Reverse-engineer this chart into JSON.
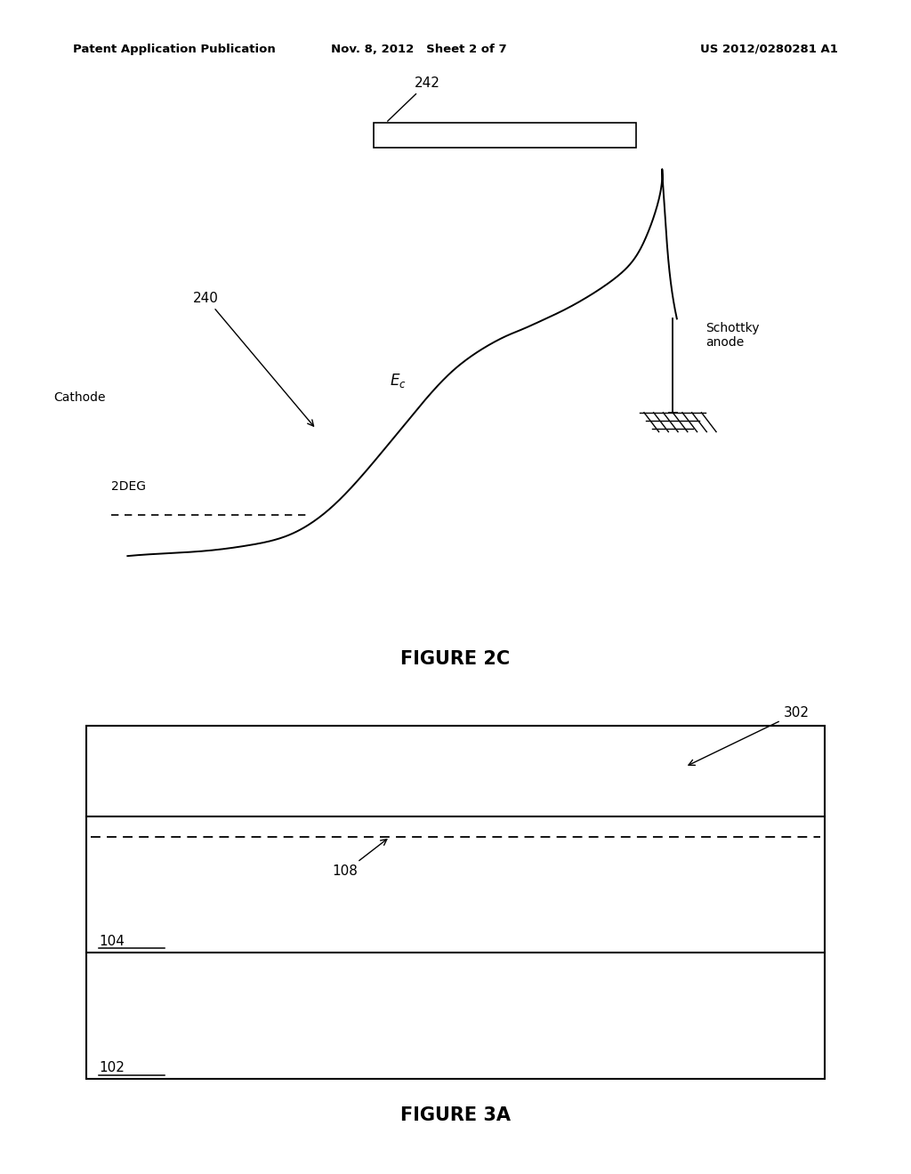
{
  "bg_color": "#ffffff",
  "header_left": "Patent Application Publication",
  "header_mid": "Nov. 8, 2012   Sheet 2 of 7",
  "header_right": "US 2012/0280281 A1",
  "fig2c_title": "FIGURE 2C",
  "fig3a_title": "FIGURE 3A",
  "label_242": "242",
  "label_240": "240",
  "label_Ec": "$E_c$",
  "label_cathode": "Cathode",
  "label_2DEG": "2DEG",
  "label_schottky": "Schottky\nanode",
  "label_302": "302",
  "label_108": "108",
  "label_104": "104",
  "label_102": "102"
}
